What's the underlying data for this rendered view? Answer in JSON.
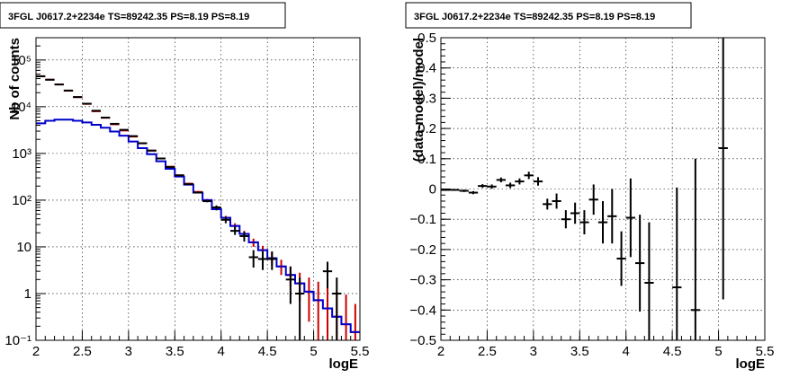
{
  "chart_data": [
    {
      "type": "histogram",
      "title": "3FGL J0617.2+2234e TS=89242.35 PS=8.19 PS=8.19",
      "xlabel": "logE",
      "ylabel": "Nb of counts",
      "xlim": [
        2,
        5.5
      ],
      "ylim": [
        0.1,
        300000
      ],
      "yscale": "log",
      "grid": true,
      "x_ticks": [
        "2",
        "2.5",
        "3",
        "3.5",
        "4",
        "4.5",
        "5",
        "5.5"
      ],
      "y_ticks": [
        "10⁻¹",
        "1",
        "10",
        "10²",
        "10³",
        "10⁴",
        "10⁵"
      ],
      "bin_width": 0.1,
      "series": [
        {
          "role": "model-total",
          "color": "#cc0000",
          "style": "error-bars",
          "x": [
            2.05,
            2.15,
            2.25,
            2.35,
            2.45,
            2.55,
            2.65,
            2.75,
            2.85,
            2.95,
            3.05,
            3.15,
            3.25,
            3.35,
            3.45,
            3.55,
            3.65,
            3.75,
            3.85,
            3.95,
            4.05,
            4.15,
            4.25,
            4.35,
            4.45,
            4.55,
            4.65,
            4.75,
            4.85,
            4.95,
            5.05,
            5.15,
            5.25,
            5.35,
            5.45
          ],
          "y": [
            45000,
            38000,
            30000,
            22000,
            16000,
            11500,
            8000,
            5800,
            4200,
            3100,
            2300,
            1650,
            1150,
            780,
            520,
            340,
            225,
            150,
            100,
            65,
            42,
            28,
            19,
            12.5,
            8.5,
            5.7,
            3.8,
            2.5,
            1.65,
            1.1,
            0.72,
            0.48,
            0.32,
            0.22,
            0.15
          ],
          "err_low": [
            44000,
            37000,
            29500,
            21700,
            15800,
            11300,
            7900,
            5700,
            4100,
            3050,
            2250,
            1600,
            1120,
            760,
            505,
            330,
            215,
            143,
            94,
            60,
            38,
            24.5,
            16.5,
            10,
            6.5,
            4,
            2.5,
            1.4,
            0.7,
            0.25,
            0.1,
            0.1,
            0.1,
            0.1,
            0.1
          ],
          "err_high": [
            46000,
            39000,
            30500,
            22300,
            16200,
            11700,
            8100,
            5900,
            4300,
            3150,
            2350,
            1700,
            1180,
            800,
            535,
            350,
            235,
            157,
            106,
            70,
            46,
            32,
            22,
            15,
            10.5,
            7.5,
            5.3,
            3.8,
            2.8,
            2.2,
            1.8,
            1.4,
            1.1,
            0.95,
            0.6
          ]
        },
        {
          "role": "model-source",
          "color": "#0000cc",
          "style": "step",
          "x": [
            2.05,
            2.15,
            2.25,
            2.35,
            2.45,
            2.55,
            2.65,
            2.75,
            2.85,
            2.95,
            3.05,
            3.15,
            3.25,
            3.35,
            3.45,
            3.55,
            3.65,
            3.75,
            3.85,
            3.95,
            4.05,
            4.15,
            4.25,
            4.35,
            4.45,
            4.55,
            4.65,
            4.75,
            4.85,
            4.95,
            5.05,
            5.15,
            5.25,
            5.35,
            5.45
          ],
          "y": [
            4400,
            5000,
            5300,
            5300,
            5000,
            4600,
            4100,
            3550,
            2950,
            2400,
            1800,
            1300,
            960,
            680,
            470,
            320,
            215,
            145,
            100,
            64,
            42,
            28,
            19,
            12.5,
            8.5,
            5.7,
            3.8,
            2.5,
            1.65,
            1.1,
            0.72,
            0.48,
            0.32,
            0.22,
            0.15
          ]
        },
        {
          "role": "data",
          "color": "#000000",
          "style": "error-bars",
          "x": [
            2.05,
            2.15,
            2.25,
            2.35,
            2.45,
            2.55,
            2.65,
            2.75,
            2.85,
            2.95,
            3.05,
            3.15,
            3.25,
            3.35,
            3.45,
            3.55,
            3.65,
            3.75,
            3.85,
            3.95,
            4.05,
            4.15,
            4.25,
            4.35,
            4.45,
            4.55,
            4.75,
            4.85,
            5.15,
            5.25
          ],
          "y": [
            44800,
            37800,
            29900,
            22200,
            16100,
            11600,
            8200,
            5850,
            4300,
            3200,
            2350,
            1650,
            1150,
            780,
            510,
            340,
            220,
            145,
            95,
            70,
            38,
            22,
            17,
            6,
            5.5,
            5.5,
            2,
            1,
            3,
            1
          ],
          "err_low": [
            44600,
            37600,
            29700,
            22000,
            15900,
            11400,
            8100,
            5750,
            4200,
            3140,
            2300,
            1610,
            1120,
            760,
            495,
            330,
            213,
            139,
            90,
            63,
            32,
            18,
            13,
            3.6,
            3.2,
            3.2,
            0.6,
            0.1,
            1.3,
            0.1
          ],
          "err_high": [
            45000,
            38000,
            30100,
            22400,
            16300,
            11800,
            8300,
            5950,
            4400,
            3260,
            2400,
            1690,
            1180,
            800,
            525,
            350,
            227,
            151,
            100,
            77,
            44,
            27,
            21,
            8.5,
            8,
            8,
            3.8,
            2.2,
            4.8,
            2.2
          ]
        }
      ]
    },
    {
      "type": "scatter",
      "title": "3FGL J0617.2+2234e TS=89242.35 PS=8.19 PS=8.19",
      "xlabel": "logE",
      "ylabel": "(data-model)/model",
      "xlim": [
        2,
        5.5
      ],
      "ylim": [
        -0.5,
        0.5
      ],
      "grid": true,
      "x_ticks": [
        "2",
        "2.5",
        "3",
        "3.5",
        "4",
        "4.5",
        "5",
        "5.5"
      ],
      "y_ticks": [
        "−0.5",
        "−0.4",
        "−0.3",
        "−0.2",
        "−0.1",
        "0",
        "0.1",
        "0.2",
        "0.3",
        "0.4",
        "0.5"
      ],
      "bin_width": 0.1,
      "series": [
        {
          "role": "residuals",
          "color": "#000000",
          "x": [
            2.05,
            2.15,
            2.25,
            2.35,
            2.45,
            2.55,
            2.65,
            2.75,
            2.85,
            2.95,
            3.05,
            3.15,
            3.25,
            3.35,
            3.45,
            3.55,
            3.65,
            3.75,
            3.85,
            3.95,
            4.05,
            4.15,
            4.25,
            4.55,
            4.75,
            5.05
          ],
          "y": [
            -0.003,
            -0.003,
            -0.006,
            -0.012,
            0.01,
            0.008,
            0.03,
            0.012,
            0.025,
            0.045,
            0.025,
            -0.05,
            -0.04,
            -0.1,
            -0.08,
            -0.11,
            -0.035,
            -0.11,
            -0.09,
            -0.23,
            -0.095,
            -0.245,
            -0.31,
            -0.325,
            -0.4,
            0.135
          ],
          "err": [
            0.003,
            0.003,
            0.004,
            0.005,
            0.006,
            0.007,
            0.008,
            0.009,
            0.01,
            0.012,
            0.014,
            0.018,
            0.025,
            0.03,
            0.035,
            0.04,
            0.05,
            0.07,
            0.09,
            0.09,
            0.13,
            0.16,
            0.2,
            0.33,
            0.5,
            0.5
          ]
        }
      ]
    }
  ]
}
